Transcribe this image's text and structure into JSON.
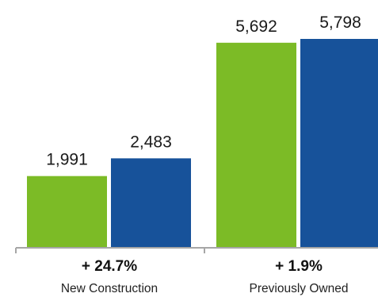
{
  "chart_data": {
    "type": "bar",
    "categories": [
      "New Construction",
      "Previously Owned"
    ],
    "category_changes": [
      "+ 24.7%",
      "+ 1.9%"
    ],
    "series": [
      {
        "values": [
          1991,
          2483
        ]
      },
      {
        "values": [
          5692,
          5798
        ]
      }
    ],
    "bars": [
      {
        "category_index": 0,
        "value": 1991,
        "label": "1,991",
        "color": "#7cbb26"
      },
      {
        "category_index": 0,
        "value": 2483,
        "label": "2,483",
        "color": "#17529a"
      },
      {
        "category_index": 1,
        "value": 5692,
        "label": "5,692",
        "color": "#7cbb26"
      },
      {
        "category_index": 1,
        "value": 5798,
        "label": "5,798",
        "color": "#17529a"
      }
    ],
    "ylim": [
      0,
      6000
    ],
    "grid": false,
    "legend": "none",
    "colors": {
      "green": "#7cbb26",
      "blue": "#17529a",
      "axis": "#a6a6a6"
    }
  }
}
